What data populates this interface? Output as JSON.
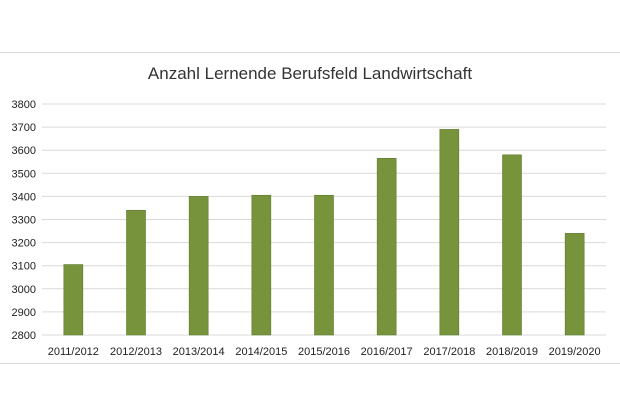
{
  "chart_data": {
    "type": "bar",
    "title": "Anzahl Lernende Berufsfeld Landwirtschaft",
    "xlabel": "",
    "ylabel": "",
    "categories": [
      "2011/2012",
      "2012/2013",
      "2013/2014",
      "2014/2015",
      "2015/2016",
      "2016/2017",
      "2017/2018",
      "2018/2019",
      "2019/2020"
    ],
    "values": [
      3105,
      3340,
      3400,
      3405,
      3405,
      3565,
      3690,
      3580,
      3240
    ],
    "ylim": [
      2800,
      3800
    ],
    "yticks": [
      2800,
      2900,
      3000,
      3100,
      3200,
      3300,
      3400,
      3500,
      3600,
      3700,
      3800
    ],
    "grid": true,
    "legend": "none",
    "colors": {
      "bar": "#77933c",
      "bar_border": "#5e7a2c",
      "grid": "#d9d9d9"
    }
  }
}
